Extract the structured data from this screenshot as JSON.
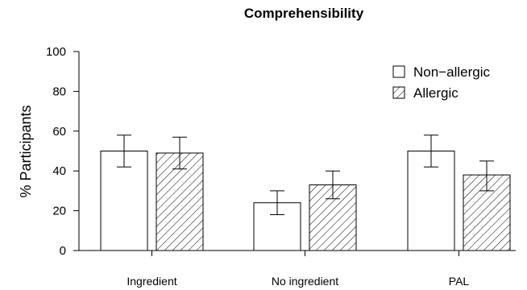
{
  "chart_data": {
    "type": "bar",
    "title": "Comprehensibility",
    "ylabel": "% Participants",
    "xlabel": "",
    "ylim": [
      0,
      100
    ],
    "yticks": [
      0,
      20,
      40,
      60,
      80,
      100
    ],
    "categories": [
      "Ingredient",
      "No ingredient",
      "PAL"
    ],
    "series": [
      {
        "name": "Non−allergic",
        "fill": "plain",
        "values": [
          50,
          24,
          50
        ],
        "err_low": [
          42,
          18,
          42
        ],
        "err_high": [
          58,
          30,
          58
        ]
      },
      {
        "name": "Allergic",
        "fill": "hatched",
        "values": [
          49,
          33,
          38
        ],
        "err_low": [
          41,
          26,
          30
        ],
        "err_high": [
          57,
          40,
          45
        ]
      }
    ],
    "legend_position": "top-right",
    "grid": false
  },
  "colors": {
    "bar_fill": "#ffffff",
    "stroke": "#000000"
  }
}
